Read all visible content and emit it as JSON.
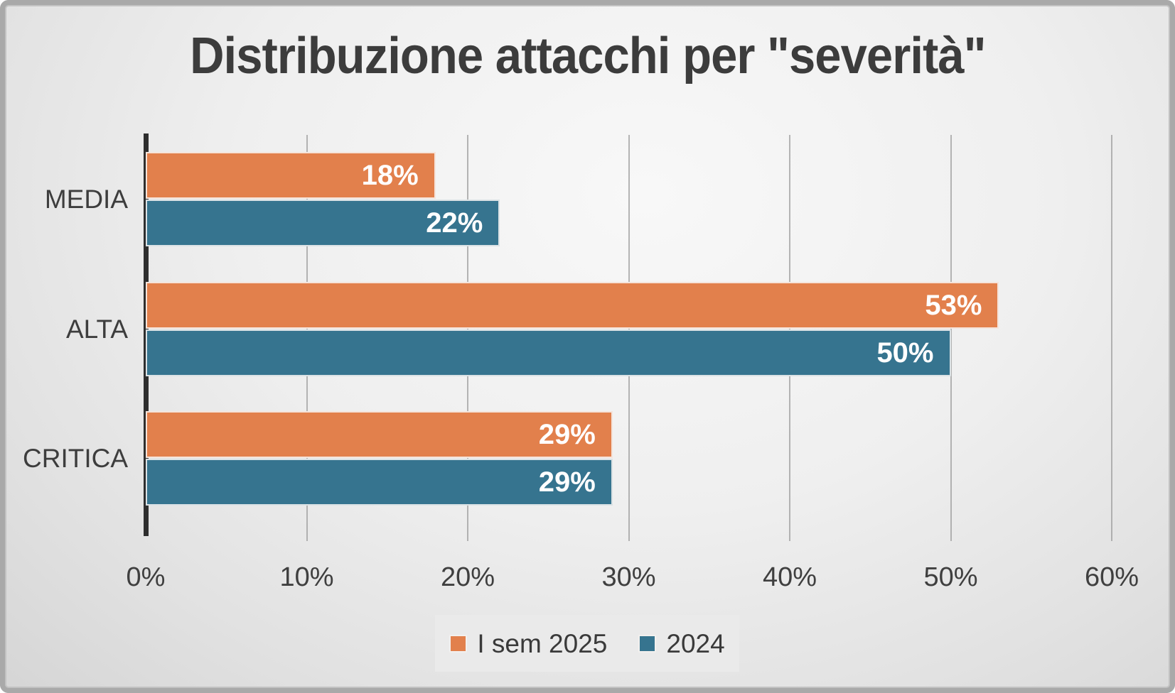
{
  "chart_data": {
    "type": "bar",
    "orientation": "horizontal",
    "title": "Distribuzione attacchi per \"severità\"",
    "categories": [
      "MEDIA",
      "ALTA",
      "CRITICA"
    ],
    "series": [
      {
        "name": "I sem 2025",
        "color": "#E2804C",
        "values": [
          18,
          53,
          29
        ],
        "labels": [
          "18%",
          "53%",
          "29%"
        ]
      },
      {
        "name": "2024",
        "color": "#36748F",
        "values": [
          22,
          50,
          29
        ],
        "labels": [
          "22%",
          "50%",
          "29%"
        ]
      }
    ],
    "x_axis": {
      "min": 0,
      "max": 60,
      "step": 10,
      "unit": "%",
      "ticks": [
        "0%",
        "10%",
        "20%",
        "30%",
        "40%",
        "50%",
        "60%"
      ]
    },
    "legend": {
      "position": "bottom",
      "items": [
        "I sem 2025",
        "2024"
      ]
    },
    "grid": "vertical-gridlines-on"
  },
  "colors": {
    "series_1": "#E2804C",
    "series_2": "#36748F",
    "title_text": "#3C3C3C",
    "axis_text": "#3F3F3F",
    "gridline": "#9E9E9E",
    "axis_line": "#2E2E2E",
    "legend_background": "#EAEAEA"
  }
}
